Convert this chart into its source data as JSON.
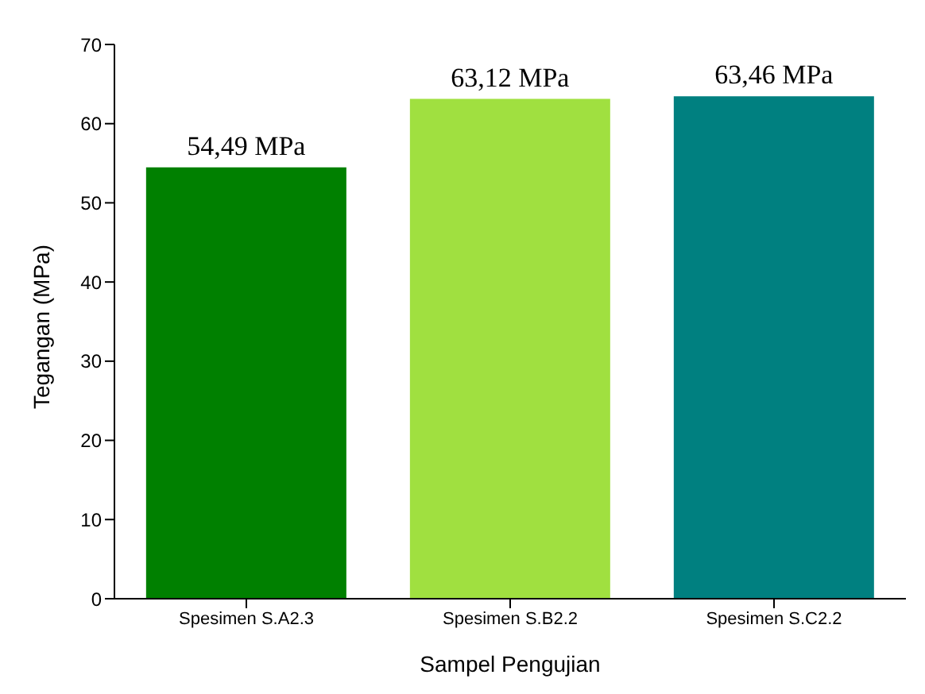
{
  "chart_data": {
    "type": "bar",
    "xlabel": "Sampel Pengujian",
    "ylabel": "Tegangan (MPa)",
    "categories": [
      "Spesimen S.A2.3",
      "Spesimen S.B2.2",
      "Spesimen S.C2.2"
    ],
    "values": [
      54.49,
      63.12,
      63.46
    ],
    "colors": [
      "#008000",
      "#a0e040",
      "#008080"
    ],
    "value_labels": [
      "54,49 MPa",
      "63,12 MPa",
      "63,46 MPa"
    ],
    "ylim": [
      0,
      70
    ],
    "yticks": [
      0,
      10,
      20,
      30,
      40,
      50,
      60,
      70
    ],
    "grid": false
  }
}
